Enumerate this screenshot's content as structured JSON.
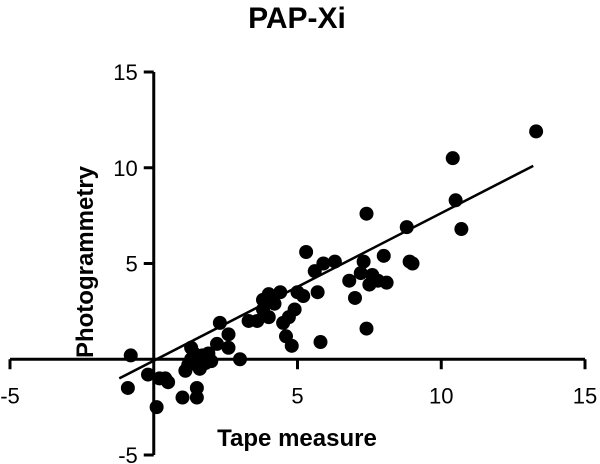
{
  "chart_data": {
    "type": "scatter",
    "title": "PAP-Xi",
    "xlabel": "Tape measure",
    "ylabel": "Photogrammetry",
    "xlim": [
      -5,
      15
    ],
    "ylim": [
      -5,
      15
    ],
    "x_ticks": [
      "-5",
      "5",
      "10",
      "15"
    ],
    "y_ticks": [
      "15",
      "10",
      "5",
      "-5"
    ],
    "grid": false,
    "legend": "none",
    "point_color": "#000000",
    "trend_line": {
      "x": [
        -1.2,
        13.2
      ],
      "y": [
        -1.0,
        10.1
      ]
    },
    "points": [
      {
        "x": -0.8,
        "y": 0.2
      },
      {
        "x": -0.9,
        "y": -1.5
      },
      {
        "x": 0.1,
        "y": -2.5
      },
      {
        "x": -0.2,
        "y": -0.8
      },
      {
        "x": 0.2,
        "y": -1.0
      },
      {
        "x": 0.4,
        "y": -1.0
      },
      {
        "x": 0.5,
        "y": -1.2
      },
      {
        "x": 1.0,
        "y": -2.0
      },
      {
        "x": 1.1,
        "y": -0.6
      },
      {
        "x": 1.2,
        "y": -0.3
      },
      {
        "x": 1.3,
        "y": 0.0
      },
      {
        "x": 1.4,
        "y": 0.3
      },
      {
        "x": 1.5,
        "y": 0.0
      },
      {
        "x": 1.6,
        "y": -0.5
      },
      {
        "x": 1.7,
        "y": 0.2
      },
      {
        "x": 1.8,
        "y": -0.2
      },
      {
        "x": 1.9,
        "y": 0.3
      },
      {
        "x": 2.0,
        "y": -0.1
      },
      {
        "x": 1.5,
        "y": -2.0
      },
      {
        "x": 1.3,
        "y": 0.6
      },
      {
        "x": 2.2,
        "y": 0.8
      },
      {
        "x": 2.3,
        "y": 1.9
      },
      {
        "x": 2.6,
        "y": 1.3
      },
      {
        "x": 2.6,
        "y": 0.6
      },
      {
        "x": 3.0,
        "y": 0.0
      },
      {
        "x": 1.5,
        "y": -1.5
      },
      {
        "x": 3.3,
        "y": 2.0
      },
      {
        "x": 3.6,
        "y": 2.0
      },
      {
        "x": 3.8,
        "y": 2.6
      },
      {
        "x": 3.8,
        "y": 3.1
      },
      {
        "x": 4.0,
        "y": 2.2
      },
      {
        "x": 4.0,
        "y": 3.4
      },
      {
        "x": 4.2,
        "y": 2.9
      },
      {
        "x": 4.4,
        "y": 3.5
      },
      {
        "x": 4.5,
        "y": 1.9
      },
      {
        "x": 4.6,
        "y": 1.2
      },
      {
        "x": 4.7,
        "y": 2.2
      },
      {
        "x": 4.8,
        "y": 0.7
      },
      {
        "x": 4.9,
        "y": 2.6
      },
      {
        "x": 5.0,
        "y": 3.5
      },
      {
        "x": 5.2,
        "y": 3.3
      },
      {
        "x": 5.3,
        "y": 5.6
      },
      {
        "x": 5.6,
        "y": 4.6
      },
      {
        "x": 5.7,
        "y": 3.5
      },
      {
        "x": 5.8,
        "y": 0.9
      },
      {
        "x": 5.9,
        "y": 5.0
      },
      {
        "x": 6.3,
        "y": 5.1
      },
      {
        "x": 6.8,
        "y": 4.1
      },
      {
        "x": 7.0,
        "y": 3.2
      },
      {
        "x": 7.2,
        "y": 4.5
      },
      {
        "x": 7.3,
        "y": 5.1
      },
      {
        "x": 7.4,
        "y": 7.6
      },
      {
        "x": 7.4,
        "y": 1.6
      },
      {
        "x": 7.5,
        "y": 3.9
      },
      {
        "x": 7.6,
        "y": 4.4
      },
      {
        "x": 7.8,
        "y": 4.1
      },
      {
        "x": 8.0,
        "y": 5.4
      },
      {
        "x": 8.1,
        "y": 4.0
      },
      {
        "x": 8.8,
        "y": 6.9
      },
      {
        "x": 8.9,
        "y": 5.1
      },
      {
        "x": 9.0,
        "y": 5.0
      },
      {
        "x": 10.4,
        "y": 10.5
      },
      {
        "x": 10.5,
        "y": 8.3
      },
      {
        "x": 10.7,
        "y": 6.8
      },
      {
        "x": 13.3,
        "y": 11.9
      }
    ]
  }
}
